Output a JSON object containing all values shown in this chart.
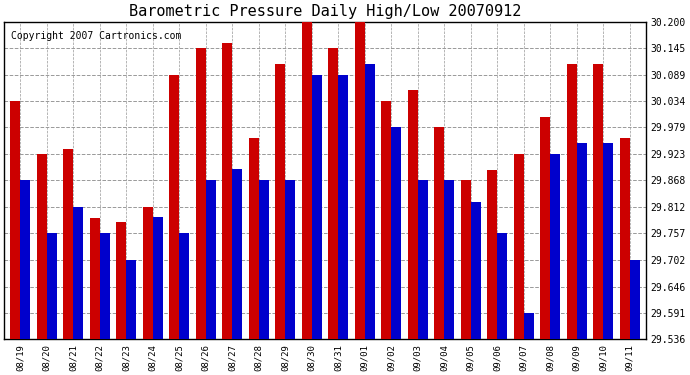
{
  "title": "Barometric Pressure Daily High/Low 20070912",
  "copyright": "Copyright 2007 Cartronics.com",
  "dates": [
    "08/19",
    "08/20",
    "08/21",
    "08/22",
    "08/23",
    "08/24",
    "08/25",
    "08/26",
    "08/27",
    "08/28",
    "08/29",
    "08/30",
    "08/31",
    "09/01",
    "09/02",
    "09/03",
    "09/04",
    "09/05",
    "09/06",
    "09/07",
    "09/08",
    "09/09",
    "09/10",
    "09/11"
  ],
  "highs": [
    30.034,
    29.923,
    29.934,
    29.79,
    29.78,
    29.812,
    30.089,
    30.145,
    30.155,
    29.957,
    30.112,
    30.2,
    30.145,
    30.2,
    30.034,
    30.057,
    29.979,
    29.868,
    29.89,
    29.923,
    30.001,
    30.112,
    30.112,
    29.957
  ],
  "lows": [
    29.868,
    29.757,
    29.812,
    29.757,
    29.702,
    29.791,
    29.757,
    29.868,
    29.891,
    29.868,
    29.868,
    30.089,
    30.089,
    30.112,
    29.979,
    29.868,
    29.868,
    29.823,
    29.757,
    29.591,
    29.923,
    29.946,
    29.946,
    29.702
  ],
  "ymin": 29.536,
  "ymax": 30.2,
  "yticks": [
    29.536,
    29.591,
    29.646,
    29.702,
    29.757,
    29.812,
    29.868,
    29.923,
    29.979,
    30.034,
    30.089,
    30.145,
    30.2
  ],
  "high_color": "#cc0000",
  "low_color": "#0000cc",
  "bg_color": "#ffffff",
  "grid_color": "#999999",
  "title_fontsize": 11,
  "copyright_fontsize": 7,
  "bar_width": 0.38
}
